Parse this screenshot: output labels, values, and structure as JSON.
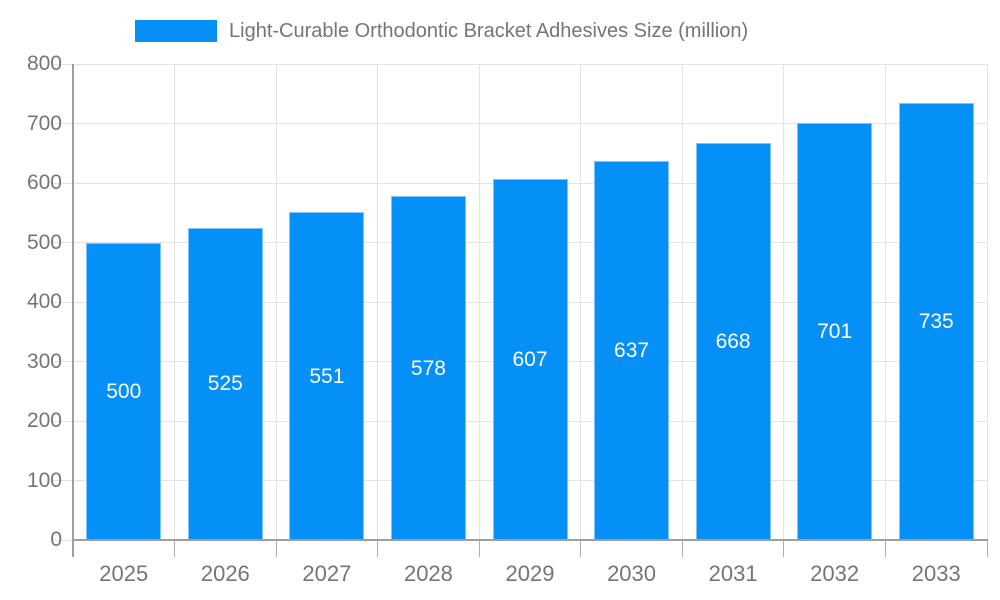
{
  "legend": {
    "label": "Light-Curable Orthodontic Bracket Adhesives Size (million)"
  },
  "chart_data": {
    "type": "bar",
    "title": "Light-Curable Orthodontic Bracket Adhesives Size (million)",
    "categories": [
      "2025",
      "2026",
      "2027",
      "2028",
      "2029",
      "2030",
      "2031",
      "2032",
      "2033"
    ],
    "values": [
      500,
      525,
      551,
      578,
      607,
      637,
      668,
      701,
      735
    ],
    "value_labels": [
      "500",
      "525",
      "551",
      "578",
      "607",
      "637",
      "668",
      "701",
      "735"
    ],
    "xlabel": "",
    "ylabel": "",
    "ylim": [
      0,
      800
    ],
    "ytick_step": 100,
    "ytick_labels": [
      "0",
      "100",
      "200",
      "300",
      "400",
      "500",
      "600",
      "700",
      "800"
    ],
    "grid": true,
    "legend_position": "top",
    "value_label_position": "center-of-bar",
    "colors": {
      "bar_fill": "#0590F8",
      "bar_edge": "#7EC3FA",
      "grid_line": "#E4E4E4",
      "axis_line": "#9E9E9E",
      "boundary_tick": "#ADADAD",
      "tick_label": "#757575",
      "value_label": "#FFFFFF",
      "background": "#FFFFFF"
    }
  }
}
